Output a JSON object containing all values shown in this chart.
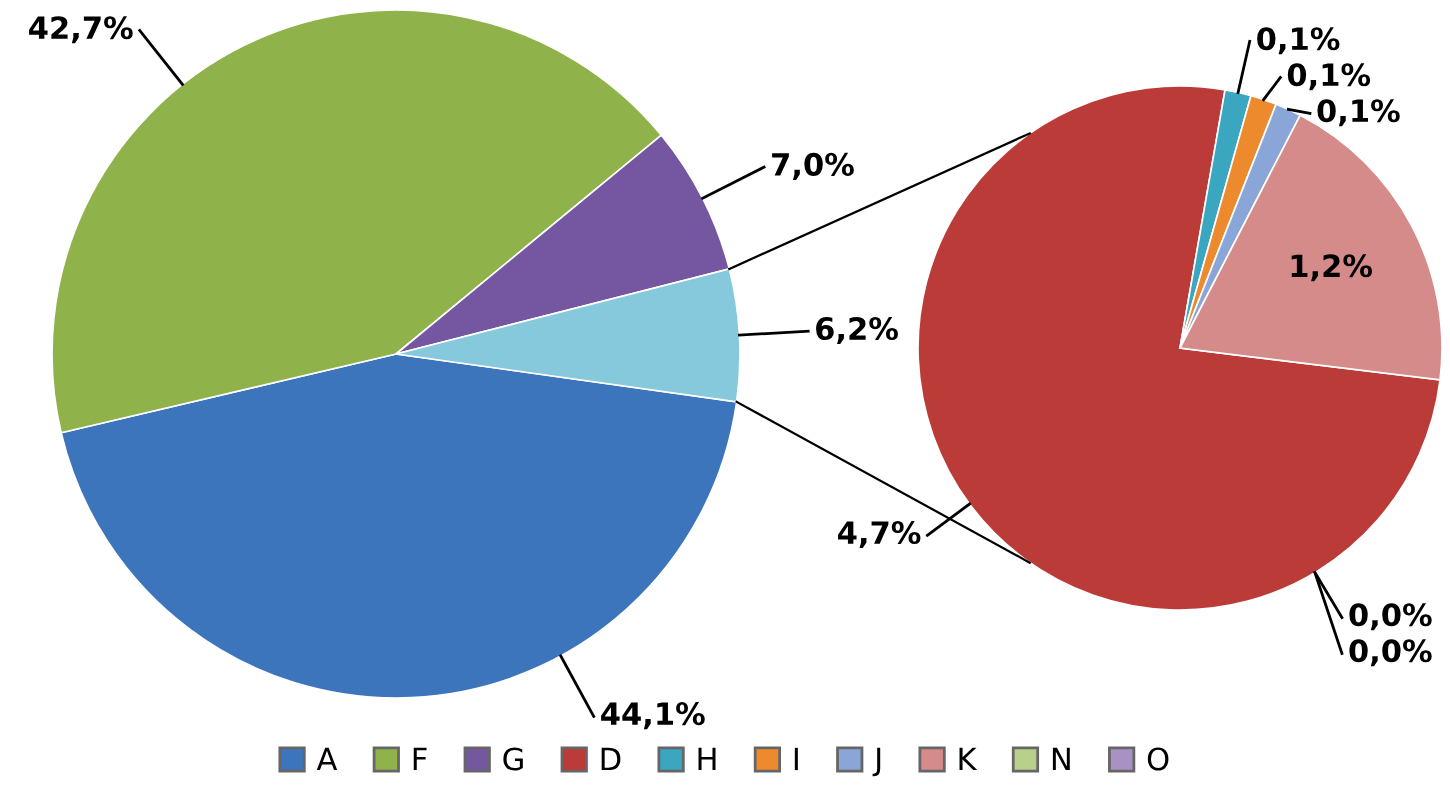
{
  "chart_data": [
    {
      "type": "pie",
      "categories": [
        "A",
        "F",
        "G",
        null
      ],
      "values": [
        44.1,
        42.7,
        7.0,
        6.2
      ],
      "colors": [
        "#3d75bd",
        "#8fb24a",
        "#7457a0",
        "#86c9dc"
      ],
      "value_labels": [
        "44,1%",
        "42,7%",
        "7,0%",
        "6,2%"
      ],
      "legend": "bottom"
    },
    {
      "type": "pie",
      "categories": [
        "D",
        "H",
        "I",
        "J",
        "K",
        "N",
        "O"
      ],
      "values": [
        4.7,
        0.1,
        0.1,
        0.1,
        1.2,
        0.0,
        0.0
      ],
      "colors": [
        "#bb3b38",
        "#3aa6c0",
        "#ee8a2e",
        "#8aa6d8",
        "#d48b89",
        "#b9d08a",
        "#a892c4"
      ],
      "value_labels": [
        "4,7%",
        "0,1%",
        "0,1%",
        "0,1%",
        "1,2%",
        "0,0%",
        "0,0%"
      ],
      "legend": "bottom"
    }
  ]
}
